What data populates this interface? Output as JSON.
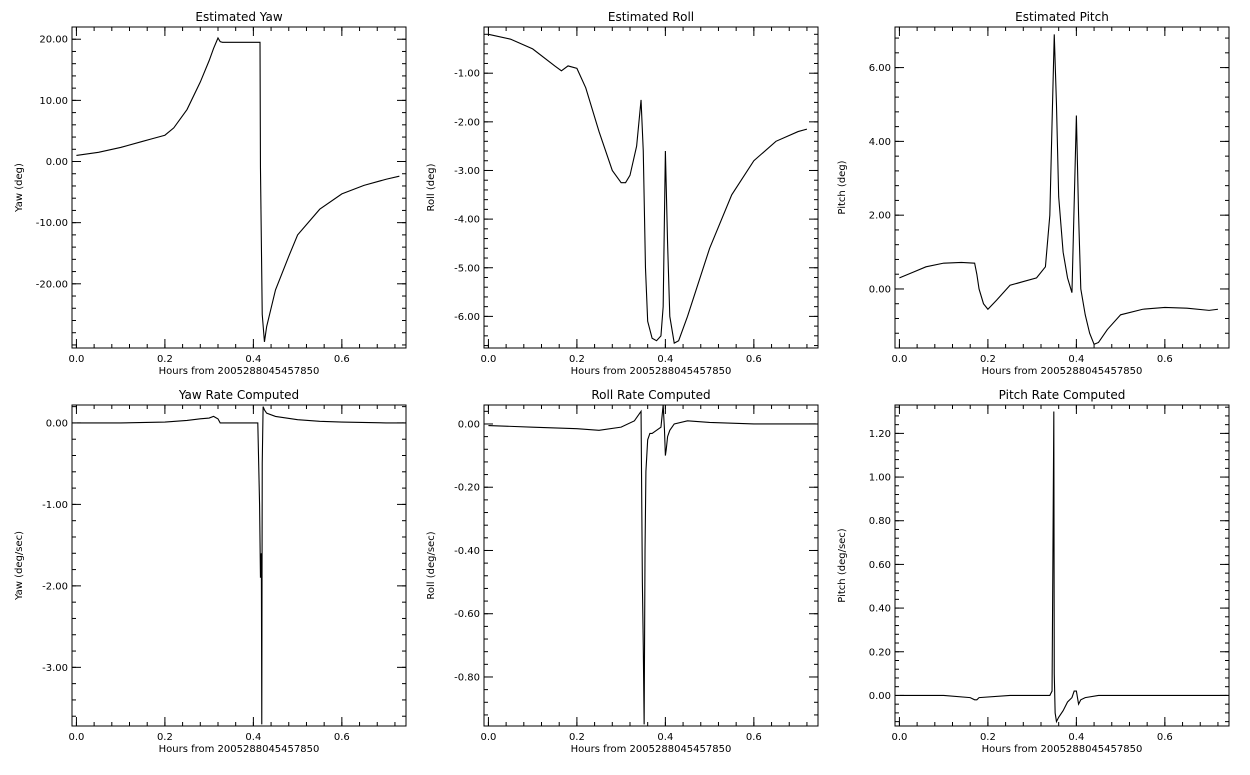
{
  "chart_data": [
    {
      "type": "line",
      "title": "Estimated Yaw",
      "xlabel": "Hours from 2005288045457850",
      "ylabel": "Yaw (deg)",
      "xlim": [
        -0.01,
        0.745
      ],
      "ylim": [
        -30.5,
        22.0
      ],
      "xticks": [
        0.0,
        0.2,
        0.4,
        0.6
      ],
      "xtick_labels": [
        "0.0",
        "0.2",
        "0.4",
        "0.6"
      ],
      "yticks": [
        -20,
        -10,
        0,
        10,
        20
      ],
      "ytick_labels": [
        "-20.00",
        "-10.00",
        "0.00",
        "10.00",
        "20.00"
      ],
      "series": [
        {
          "x": [
            0.0,
            0.05,
            0.1,
            0.15,
            0.17,
            0.2,
            0.22,
            0.25,
            0.28,
            0.3,
            0.31,
            0.32,
            0.325,
            0.33,
            0.35,
            0.38,
            0.41,
            0.415,
            0.416,
            0.42,
            0.425,
            0.43,
            0.45,
            0.48,
            0.5,
            0.55,
            0.6,
            0.65,
            0.7,
            0.73
          ],
          "y": [
            1.0,
            1.5,
            2.3,
            3.3,
            3.7,
            4.3,
            5.5,
            8.5,
            13.0,
            16.5,
            18.5,
            20.2,
            19.6,
            19.5,
            19.5,
            19.5,
            19.5,
            19.5,
            -1.0,
            -25.0,
            -29.5,
            -27.0,
            -21.0,
            -15.5,
            -12.0,
            -7.8,
            -5.3,
            -3.9,
            -2.9,
            -2.4
          ]
        }
      ]
    },
    {
      "type": "line",
      "title": "Estimated Roll",
      "xlabel": "Hours from 2005288045457850",
      "ylabel": "Roll (deg)",
      "xlim": [
        -0.01,
        0.745
      ],
      "ylim": [
        -6.65,
        -0.05
      ],
      "xticks": [
        0.0,
        0.2,
        0.4,
        0.6
      ],
      "xtick_labels": [
        "0.0",
        "0.2",
        "0.4",
        "0.6"
      ],
      "yticks": [
        -6,
        -5,
        -4,
        -3,
        -2,
        -1
      ],
      "ytick_labels": [
        "-6.00",
        "-5.00",
        "-4.00",
        "-3.00",
        "-2.00",
        "-1.00"
      ],
      "series": [
        {
          "x": [
            0.0,
            0.05,
            0.1,
            0.15,
            0.165,
            0.18,
            0.2,
            0.22,
            0.25,
            0.28,
            0.3,
            0.31,
            0.32,
            0.335,
            0.345,
            0.35,
            0.355,
            0.36,
            0.37,
            0.38,
            0.39,
            0.395,
            0.4,
            0.405,
            0.41,
            0.42,
            0.43,
            0.45,
            0.5,
            0.55,
            0.6,
            0.65,
            0.7,
            0.72
          ],
          "y": [
            -0.2,
            -0.3,
            -0.5,
            -0.85,
            -0.95,
            -0.85,
            -0.9,
            -1.3,
            -2.2,
            -3.0,
            -3.25,
            -3.25,
            -3.1,
            -2.5,
            -1.55,
            -2.6,
            -5.0,
            -6.1,
            -6.45,
            -6.5,
            -6.4,
            -5.8,
            -2.6,
            -4.5,
            -6.0,
            -6.55,
            -6.5,
            -6.0,
            -4.6,
            -3.5,
            -2.8,
            -2.4,
            -2.2,
            -2.15
          ]
        }
      ]
    },
    {
      "type": "line",
      "title": "Estimated Pitch",
      "xlabel": "Hours from 2005288045457850",
      "ylabel": "Pitch (deg)",
      "xlim": [
        -0.01,
        0.745
      ],
      "ylim": [
        -1.6,
        7.1
      ],
      "xticks": [
        0.0,
        0.2,
        0.4,
        0.6
      ],
      "xtick_labels": [
        "0.0",
        "0.2",
        "0.4",
        "0.6"
      ],
      "yticks": [
        0,
        2,
        4,
        6
      ],
      "ytick_labels": [
        "0.00",
        "2.00",
        "4.00",
        "6.00"
      ],
      "series": [
        {
          "x": [
            0.0,
            0.03,
            0.06,
            0.1,
            0.14,
            0.17,
            0.175,
            0.18,
            0.19,
            0.2,
            0.22,
            0.25,
            0.28,
            0.31,
            0.33,
            0.34,
            0.345,
            0.35,
            0.355,
            0.36,
            0.37,
            0.38,
            0.39,
            0.4,
            0.405,
            0.41,
            0.42,
            0.43,
            0.44,
            0.45,
            0.47,
            0.5,
            0.55,
            0.6,
            0.65,
            0.7,
            0.72
          ],
          "y": [
            0.3,
            0.45,
            0.6,
            0.7,
            0.72,
            0.7,
            0.4,
            0.0,
            -0.4,
            -0.55,
            -0.3,
            0.1,
            0.2,
            0.3,
            0.6,
            2.0,
            4.5,
            6.9,
            5.0,
            2.5,
            1.0,
            0.3,
            -0.1,
            4.7,
            2.0,
            0.0,
            -0.7,
            -1.2,
            -1.5,
            -1.45,
            -1.1,
            -0.7,
            -0.55,
            -0.5,
            -0.52,
            -0.58,
            -0.55
          ]
        }
      ]
    },
    {
      "type": "line",
      "title": "Yaw Rate Computed",
      "xlabel": "Hours from 2005288045457850",
      "ylabel": "Yaw (deg/sec)",
      "xlim": [
        -0.01,
        0.745
      ],
      "ylim": [
        -3.72,
        0.22
      ],
      "xticks": [
        0.0,
        0.2,
        0.4,
        0.6
      ],
      "xtick_labels": [
        "0.0",
        "0.2",
        "0.4",
        "0.6"
      ],
      "yticks": [
        -3,
        -2,
        -1,
        0
      ],
      "ytick_labels": [
        "-3.00",
        "-2.00",
        "-1.00",
        "0.00"
      ],
      "series": [
        {
          "x": [
            0.0,
            0.1,
            0.2,
            0.25,
            0.28,
            0.3,
            0.31,
            0.32,
            0.325,
            0.33,
            0.36,
            0.39,
            0.41,
            0.414,
            0.416,
            0.418,
            0.419,
            0.42,
            0.422,
            0.425,
            0.43,
            0.45,
            0.5,
            0.55,
            0.6,
            0.7,
            0.74
          ],
          "y": [
            0.0,
            0.0,
            0.01,
            0.03,
            0.05,
            0.06,
            0.08,
            0.05,
            0.0,
            0.0,
            0.0,
            0.0,
            0.0,
            -1.0,
            -1.9,
            -1.6,
            -3.7,
            -0.5,
            0.2,
            0.16,
            0.12,
            0.08,
            0.04,
            0.02,
            0.01,
            0.0,
            0.0
          ]
        }
      ]
    },
    {
      "type": "line",
      "title": "Roll Rate Computed",
      "xlabel": "Hours from 2005288045457850",
      "ylabel": "Roll (deg/sec)",
      "xlim": [
        -0.01,
        0.745
      ],
      "ylim": [
        -0.955,
        0.06
      ],
      "xticks": [
        0.0,
        0.2,
        0.4,
        0.6
      ],
      "xtick_labels": [
        "0.0",
        "0.2",
        "0.4",
        "0.6"
      ],
      "yticks": [
        -0.8,
        -0.6,
        -0.4,
        -0.2,
        0.0
      ],
      "ytick_labels": [
        "-0.80",
        "-0.60",
        "-0.40",
        "-0.20",
        "0.00"
      ],
      "series": [
        {
          "x": [
            0.0,
            0.1,
            0.2,
            0.25,
            0.3,
            0.33,
            0.345,
            0.348,
            0.35,
            0.352,
            0.354,
            0.356,
            0.36,
            0.365,
            0.37,
            0.38,
            0.39,
            0.395,
            0.398,
            0.4,
            0.402,
            0.405,
            0.41,
            0.42,
            0.45,
            0.5,
            0.6,
            0.7,
            0.74
          ],
          "y": [
            -0.005,
            -0.01,
            -0.015,
            -0.02,
            -0.01,
            0.01,
            0.04,
            -0.5,
            -0.7,
            -0.95,
            -0.4,
            -0.15,
            -0.05,
            -0.03,
            -0.03,
            -0.02,
            -0.01,
            0.06,
            -0.02,
            -0.1,
            -0.08,
            -0.04,
            -0.02,
            0.0,
            0.01,
            0.005,
            0.0,
            0.0,
            0.0
          ]
        }
      ]
    },
    {
      "type": "line",
      "title": "Pitch Rate Computed",
      "xlabel": "Hours from 2005288045457850",
      "ylabel": "Pitch (deg/sec)",
      "xlim": [
        -0.01,
        0.745
      ],
      "ylim": [
        -0.14,
        1.33
      ],
      "xticks": [
        0.0,
        0.2,
        0.4,
        0.6
      ],
      "xtick_labels": [
        "0.0",
        "0.2",
        "0.4",
        "0.6"
      ],
      "yticks": [
        0.0,
        0.2,
        0.4,
        0.6,
        0.8,
        1.0,
        1.2
      ],
      "ytick_labels": [
        "0.00",
        "0.20",
        "0.40",
        "0.60",
        "0.80",
        "1.00",
        "1.20"
      ],
      "series": [
        {
          "x": [
            0.0,
            0.1,
            0.16,
            0.17,
            0.175,
            0.18,
            0.25,
            0.3,
            0.34,
            0.345,
            0.347,
            0.349,
            0.35,
            0.352,
            0.355,
            0.36,
            0.37,
            0.38,
            0.39,
            0.395,
            0.4,
            0.405,
            0.41,
            0.42,
            0.45,
            0.5,
            0.6,
            0.7,
            0.74
          ],
          "y": [
            0.0,
            0.0,
            -0.01,
            -0.02,
            -0.02,
            -0.01,
            0.0,
            0.0,
            0.0,
            0.02,
            0.65,
            1.3,
            0.1,
            -0.08,
            -0.12,
            -0.1,
            -0.07,
            -0.03,
            -0.01,
            0.02,
            0.02,
            -0.04,
            -0.02,
            -0.01,
            0.0,
            0.0,
            0.0,
            0.0,
            0.0
          ]
        }
      ]
    }
  ]
}
